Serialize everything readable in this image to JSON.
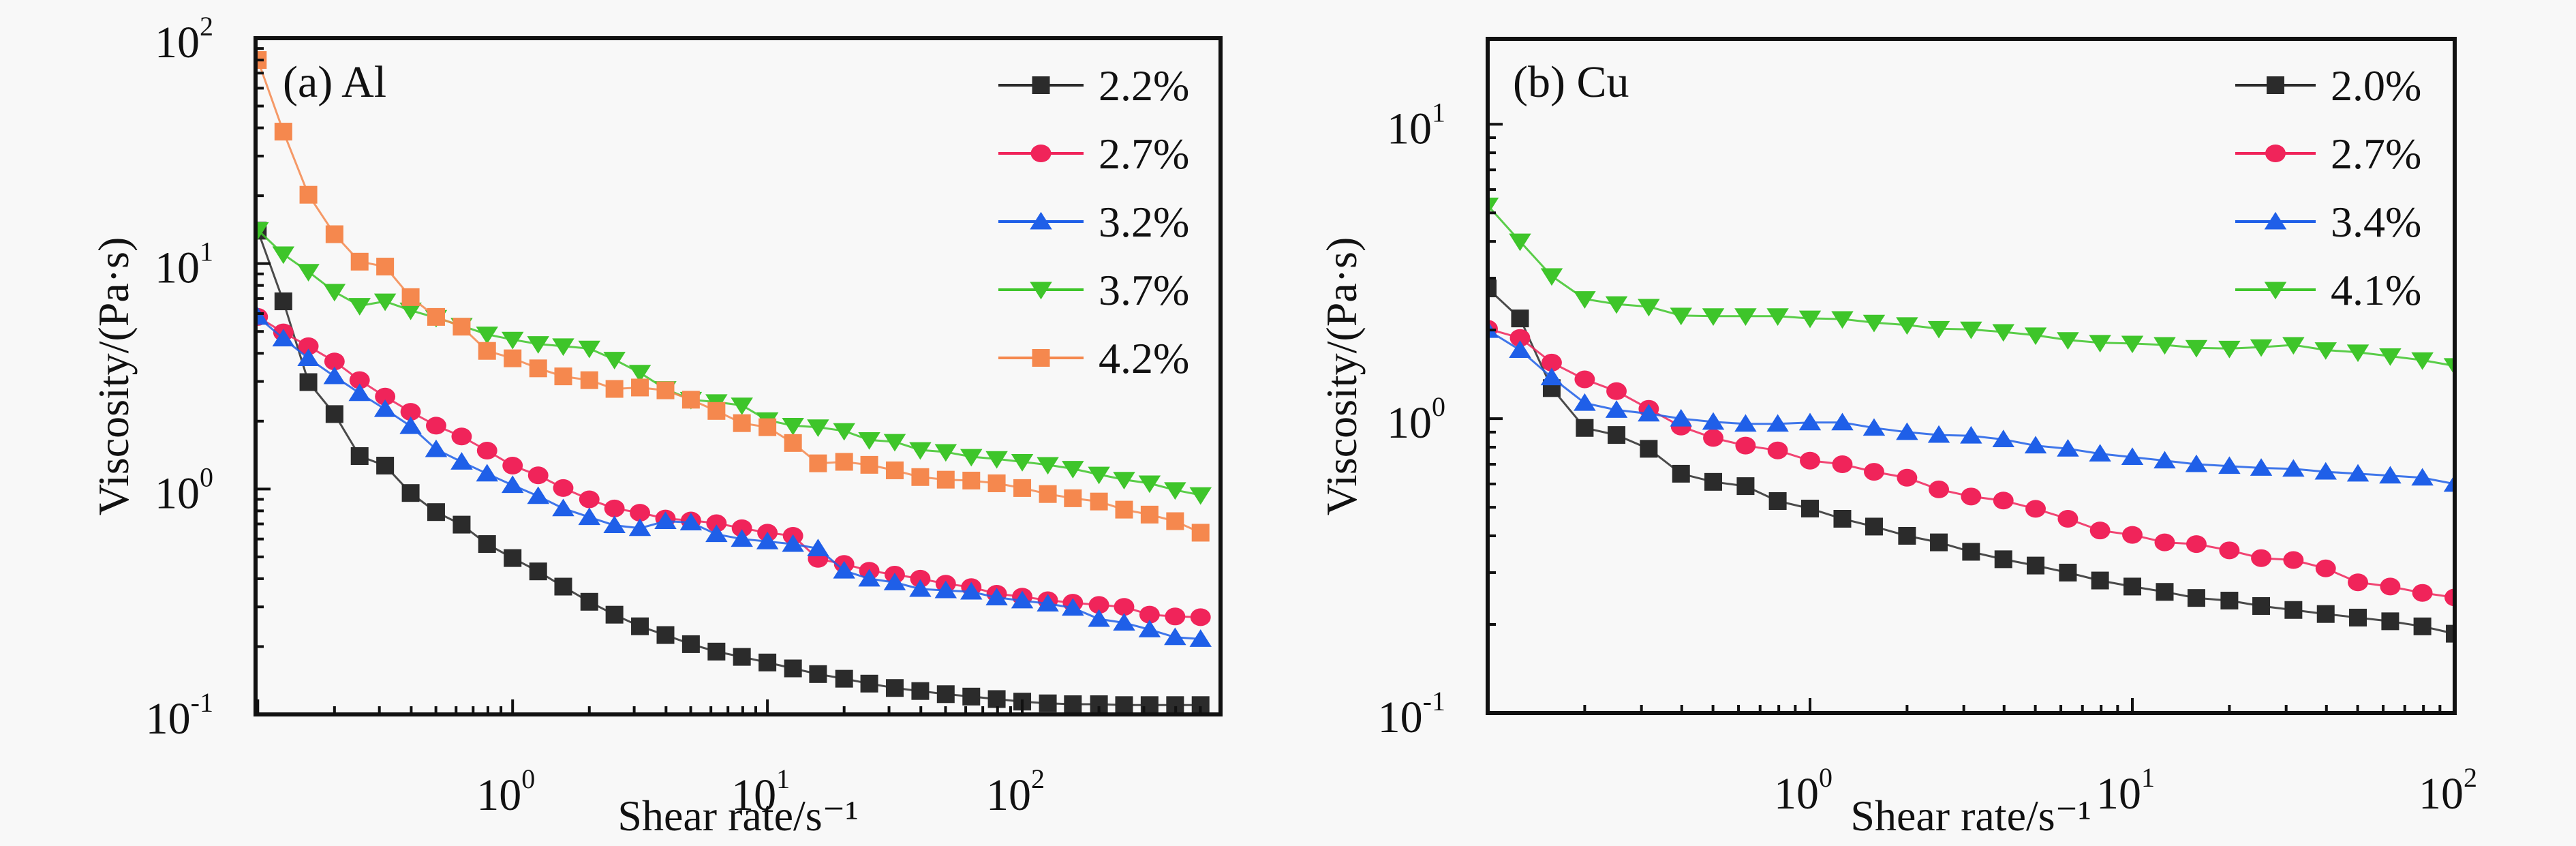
{
  "figure": {
    "description": "Viscosity vs shear rate for Al and Cu suspensions at various concentrations"
  },
  "chart_data": [
    {
      "type": "line",
      "title": "(a) Al",
      "xlabel": "Shear rate/s⁻¹",
      "ylabel": "Viscosity/(Pa·s)",
      "xscale": "log",
      "yscale": "log",
      "xlim": [
        0.098,
        600
      ],
      "ylim": [
        0.1,
        100
      ],
      "xticks": [
        {
          "value": 1,
          "base": "10",
          "exp": "0"
        },
        {
          "value": 10,
          "base": "10",
          "exp": "1"
        },
        {
          "value": 100,
          "base": "10",
          "exp": "2"
        }
      ],
      "yticks": [
        {
          "value": 0.1,
          "base": "10",
          "exp": "-1"
        },
        {
          "value": 1,
          "base": "10",
          "exp": "0"
        },
        {
          "value": 10,
          "base": "10",
          "exp": "1"
        },
        {
          "value": 100,
          "base": "10",
          "exp": "2"
        }
      ],
      "legend_position": "top-right",
      "x": [
        0.1,
        0.126,
        0.158,
        0.2,
        0.251,
        0.316,
        0.398,
        0.501,
        0.631,
        0.794,
        1.0,
        1.26,
        1.58,
        2.0,
        2.51,
        3.16,
        3.98,
        5.01,
        6.31,
        7.94,
        10,
        12.6,
        15.8,
        20,
        25.1,
        31.6,
        39.8,
        50.1,
        63.1,
        79.4,
        100,
        126,
        158,
        200,
        251,
        316,
        398,
        501
      ],
      "series": [
        {
          "name": "2.2%",
          "color": "#2b2b2b",
          "marker": "square",
          "values": [
            14,
            6.8,
            2.98,
            2.15,
            1.4,
            1.27,
            0.96,
            0.79,
            0.695,
            0.57,
            0.494,
            0.431,
            0.369,
            0.316,
            0.277,
            0.246,
            0.225,
            0.205,
            0.19,
            0.18,
            0.17,
            0.16,
            0.151,
            0.144,
            0.137,
            0.131,
            0.127,
            0.123,
            0.12,
            0.117,
            0.114,
            0.112,
            0.111,
            0.111,
            0.11,
            0.11,
            0.11,
            0.11
          ]
        },
        {
          "name": "2.7%",
          "color": "#f0245a",
          "marker": "circle",
          "values": [
            5.8,
            4.95,
            4.3,
            3.68,
            3.04,
            2.57,
            2.2,
            1.91,
            1.71,
            1.48,
            1.27,
            1.15,
            1.01,
            0.9,
            0.82,
            0.785,
            0.74,
            0.725,
            0.705,
            0.67,
            0.64,
            0.62,
            0.49,
            0.465,
            0.434,
            0.417,
            0.4,
            0.38,
            0.367,
            0.343,
            0.333,
            0.321,
            0.313,
            0.306,
            0.3,
            0.277,
            0.272,
            0.27
          ]
        },
        {
          "name": "3.2%",
          "color": "#1f5fe8",
          "marker": "triangle-up",
          "values": [
            5.8,
            4.65,
            3.8,
            3.16,
            2.66,
            2.26,
            1.9,
            1.5,
            1.32,
            1.17,
            1.04,
            0.93,
            0.82,
            0.75,
            0.69,
            0.67,
            0.72,
            0.71,
            0.63,
            0.6,
            0.585,
            0.57,
            0.545,
            0.434,
            0.4,
            0.385,
            0.36,
            0.355,
            0.35,
            0.33,
            0.32,
            0.31,
            0.297,
            0.265,
            0.255,
            0.238,
            0.22,
            0.216
          ]
        },
        {
          "name": "3.7%",
          "color": "#3ec52a",
          "marker": "triangle-down",
          "values": [
            14.1,
            11,
            9.2,
            7.5,
            6.5,
            6.8,
            6.2,
            5.75,
            5.3,
            4.85,
            4.6,
            4.4,
            4.3,
            4.2,
            3.75,
            3.28,
            2.78,
            2.49,
            2.43,
            2.35,
            2.02,
            1.91,
            1.88,
            1.81,
            1.65,
            1.62,
            1.49,
            1.46,
            1.39,
            1.36,
            1.32,
            1.28,
            1.23,
            1.16,
            1.1,
            1.06,
            0.99,
            0.94
          ]
        },
        {
          "name": "4.2%",
          "color": "#f5884e",
          "marker": "square",
          "values": [
            80,
            38.5,
            20.2,
            13.5,
            10.2,
            9.7,
            7.1,
            5.8,
            5.25,
            4.1,
            3.8,
            3.43,
            3.16,
            3.04,
            2.78,
            2.82,
            2.74,
            2.49,
            2.22,
            1.96,
            1.88,
            1.6,
            1.3,
            1.32,
            1.28,
            1.21,
            1.13,
            1.1,
            1.09,
            1.06,
            1.01,
            0.95,
            0.91,
            0.88,
            0.81,
            0.77,
            0.72,
            0.64
          ]
        }
      ]
    },
    {
      "type": "line",
      "title": "(b) Cu",
      "xlabel": "Shear rate/s⁻¹",
      "ylabel": "Viscosity/(Pa·s)",
      "xscale": "log",
      "yscale": "log",
      "xlim": [
        0.1,
        100
      ],
      "ylim": [
        0.1,
        19.5
      ],
      "xticks": [
        {
          "value": 1,
          "base": "10",
          "exp": "0"
        },
        {
          "value": 10,
          "base": "10",
          "exp": "1"
        },
        {
          "value": 100,
          "base": "10",
          "exp": "2"
        }
      ],
      "yticks": [
        {
          "value": 0.1,
          "base": "10",
          "exp": "-1"
        },
        {
          "value": 1,
          "base": "10",
          "exp": "0"
        },
        {
          "value": 10,
          "base": "10",
          "exp": "1"
        }
      ],
      "legend_position": "top-right",
      "x": [
        0.1,
        0.126,
        0.158,
        0.2,
        0.251,
        0.316,
        0.398,
        0.501,
        0.631,
        0.794,
        1.0,
        1.26,
        1.58,
        2.0,
        2.51,
        3.16,
        3.98,
        5.01,
        6.31,
        7.94,
        10,
        12.6,
        15.8,
        20,
        25.1,
        31.6,
        39.8,
        50.1,
        63.1,
        79.4,
        100
      ],
      "series": [
        {
          "name": "2.0%",
          "color": "#2b2b2b",
          "marker": "square",
          "values": [
            2.77,
            2.19,
            1.27,
            0.93,
            0.88,
            0.79,
            0.65,
            0.61,
            0.59,
            0.525,
            0.495,
            0.457,
            0.43,
            0.4,
            0.38,
            0.353,
            0.333,
            0.317,
            0.3,
            0.282,
            0.269,
            0.258,
            0.246,
            0.241,
            0.231,
            0.224,
            0.217,
            0.211,
            0.205,
            0.197,
            0.186
          ]
        },
        {
          "name": "2.7%",
          "color": "#f0245a",
          "marker": "circle",
          "values": [
            2.02,
            1.88,
            1.55,
            1.36,
            1.24,
            1.08,
            0.94,
            0.86,
            0.81,
            0.78,
            0.72,
            0.7,
            0.66,
            0.63,
            0.575,
            0.544,
            0.527,
            0.494,
            0.457,
            0.417,
            0.403,
            0.38,
            0.375,
            0.357,
            0.336,
            0.331,
            0.31,
            0.278,
            0.269,
            0.256,
            0.247
          ]
        },
        {
          "name": "3.4%",
          "color": "#1f5fe8",
          "marker": "triangle-up",
          "values": [
            2.0,
            1.71,
            1.38,
            1.13,
            1.07,
            1.04,
            1.0,
            0.975,
            0.96,
            0.96,
            0.97,
            0.97,
            0.93,
            0.9,
            0.88,
            0.875,
            0.85,
            0.81,
            0.79,
            0.76,
            0.74,
            0.72,
            0.7,
            0.69,
            0.68,
            0.675,
            0.66,
            0.65,
            0.64,
            0.63,
            0.6
          ]
        },
        {
          "name": "4.1%",
          "color": "#3ec52a",
          "marker": "triangle-down",
          "values": [
            5.3,
            4.0,
            3.05,
            2.55,
            2.45,
            2.4,
            2.24,
            2.23,
            2.23,
            2.23,
            2.19,
            2.18,
            2.12,
            2.08,
            2.02,
            2.01,
            1.97,
            1.92,
            1.85,
            1.81,
            1.8,
            1.78,
            1.74,
            1.73,
            1.75,
            1.78,
            1.71,
            1.68,
            1.63,
            1.58,
            1.51
          ]
        }
      ]
    }
  ]
}
